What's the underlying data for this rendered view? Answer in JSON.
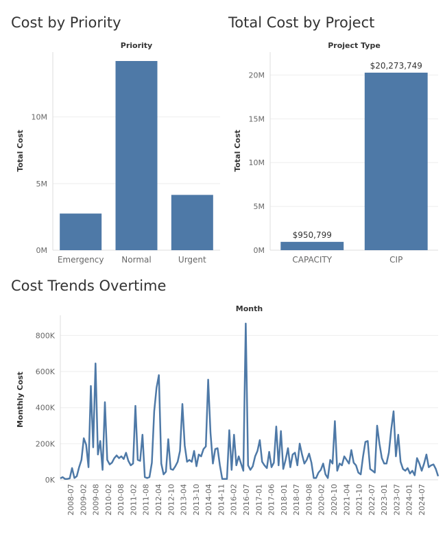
{
  "titles": {
    "priority": "Cost by Priority",
    "project": "Total Cost by Project",
    "trend": "Cost Trends Overtime"
  },
  "colors": {
    "bar": "#4e79a7",
    "grid": "#eeeeee",
    "axis": "#dddddd",
    "text": "#666666"
  },
  "chart_data": [
    {
      "type": "bar",
      "header": "Priority",
      "ylabel": "Total Cost",
      "categories": [
        "Emergency",
        "Normal",
        "Urgent"
      ],
      "values": [
        2750000,
        14200000,
        4150000
      ],
      "ylim": [
        0,
        14200000
      ],
      "yticks": [
        0,
        5000000,
        10000000
      ],
      "ytick_labels": [
        "0M",
        "5M",
        "10M"
      ],
      "grid": true
    },
    {
      "type": "bar",
      "header": "Project Type",
      "ylabel": "Total Cost",
      "categories": [
        "CAPACITY",
        "CIP"
      ],
      "values": [
        950799,
        20273749
      ],
      "data_labels": [
        "$950,799",
        "$20,273,749"
      ],
      "ylim": [
        0,
        20273749
      ],
      "yticks": [
        0,
        5000000,
        10000000,
        15000000,
        20000000
      ],
      "ytick_labels": [
        "0M",
        "5M",
        "10M",
        "15M",
        "20M"
      ],
      "grid": true
    },
    {
      "type": "line",
      "header": "Month",
      "ylabel": "Monthly Cost",
      "ylim": [
        0,
        866000
      ],
      "yticks": [
        0,
        200000,
        400000,
        600000,
        800000
      ],
      "ytick_labels": [
        "0K",
        "200K",
        "400K",
        "600K",
        "800K"
      ],
      "xtick_labels": [
        "2008-07",
        "2009-02",
        "2009-08",
        "2010-02",
        "2010-08",
        "2011-02",
        "2011-08",
        "2012-04",
        "2012-10",
        "2013-04",
        "2013-10",
        "2014-04",
        "2014-11",
        "2016-02",
        "2016-07",
        "2017-01",
        "2017-06",
        "2018-01",
        "2018-07",
        "2019-08",
        "2020-02",
        "2020-10",
        "2021-04",
        "2021-10",
        "2022-07",
        "2023-01",
        "2023-07",
        "2024-01",
        "2024-07"
      ],
      "values": [
        8000,
        15000,
        5000,
        5000,
        8000,
        65000,
        10000,
        20000,
        70000,
        110000,
        230000,
        195000,
        70000,
        520000,
        180000,
        645000,
        140000,
        215000,
        55000,
        430000,
        110000,
        85000,
        95000,
        120000,
        135000,
        120000,
        130000,
        115000,
        150000,
        105000,
        80000,
        90000,
        410000,
        110000,
        105000,
        250000,
        15000,
        10000,
        15000,
        95000,
        380000,
        510000,
        580000,
        90000,
        30000,
        45000,
        225000,
        60000,
        55000,
        75000,
        100000,
        160000,
        420000,
        190000,
        100000,
        110000,
        100000,
        160000,
        75000,
        140000,
        130000,
        170000,
        185000,
        555000,
        260000,
        90000,
        170000,
        175000,
        80000,
        5000,
        5000,
        5000,
        275000,
        55000,
        250000,
        80000,
        130000,
        90000,
        50000,
        866000,
        80000,
        55000,
        75000,
        130000,
        160000,
        220000,
        100000,
        80000,
        65000,
        155000,
        70000,
        95000,
        295000,
        80000,
        270000,
        60000,
        110000,
        175000,
        70000,
        140000,
        150000,
        80000,
        200000,
        140000,
        90000,
        110000,
        145000,
        95000,
        10000,
        10000,
        40000,
        55000,
        90000,
        30000,
        10000,
        110000,
        90000,
        325000,
        50000,
        90000,
        80000,
        130000,
        110000,
        90000,
        165000,
        95000,
        80000,
        40000,
        30000,
        130000,
        210000,
        215000,
        60000,
        50000,
        40000,
        300000,
        200000,
        120000,
        90000,
        90000,
        150000,
        280000,
        380000,
        130000,
        250000,
        100000,
        60000,
        50000,
        65000,
        35000,
        50000,
        25000,
        120000,
        90000,
        50000,
        90000,
        140000,
        70000,
        80000,
        85000,
        60000,
        20000
      ],
      "grid": true
    }
  ]
}
